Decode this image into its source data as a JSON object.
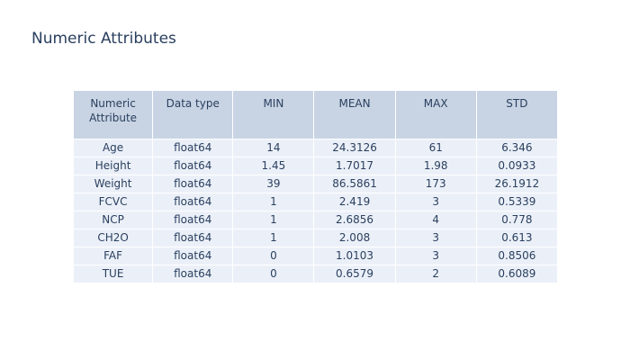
{
  "title": "Numeric Attributes",
  "chart_data": {
    "type": "table",
    "title": "Numeric Attributes",
    "header_color": "#c8d4e3",
    "cell_color": "#ebf0f8",
    "font_color": "#2a3f5f",
    "columns": [
      "Numeric Attribute",
      "Data type",
      "MIN",
      "MEAN",
      "MAX",
      "STD"
    ],
    "rows": [
      [
        "Age",
        "float64",
        "14",
        "24.3126",
        "61",
        "6.346"
      ],
      [
        "Height",
        "float64",
        "1.45",
        "1.7017",
        "1.98",
        "0.0933"
      ],
      [
        "Weight",
        "float64",
        "39",
        "86.5861",
        "173",
        "26.1912"
      ],
      [
        "FCVC",
        "float64",
        "1",
        "2.419",
        "3",
        "0.5339"
      ],
      [
        "NCP",
        "float64",
        "1",
        "2.6856",
        "4",
        "0.778"
      ],
      [
        "CH2O",
        "float64",
        "1",
        "2.008",
        "3",
        "0.613"
      ],
      [
        "FAF",
        "float64",
        "0",
        "1.0103",
        "3",
        "0.8506"
      ],
      [
        "TUE",
        "float64",
        "0",
        "0.6579",
        "2",
        "0.6089"
      ]
    ]
  }
}
